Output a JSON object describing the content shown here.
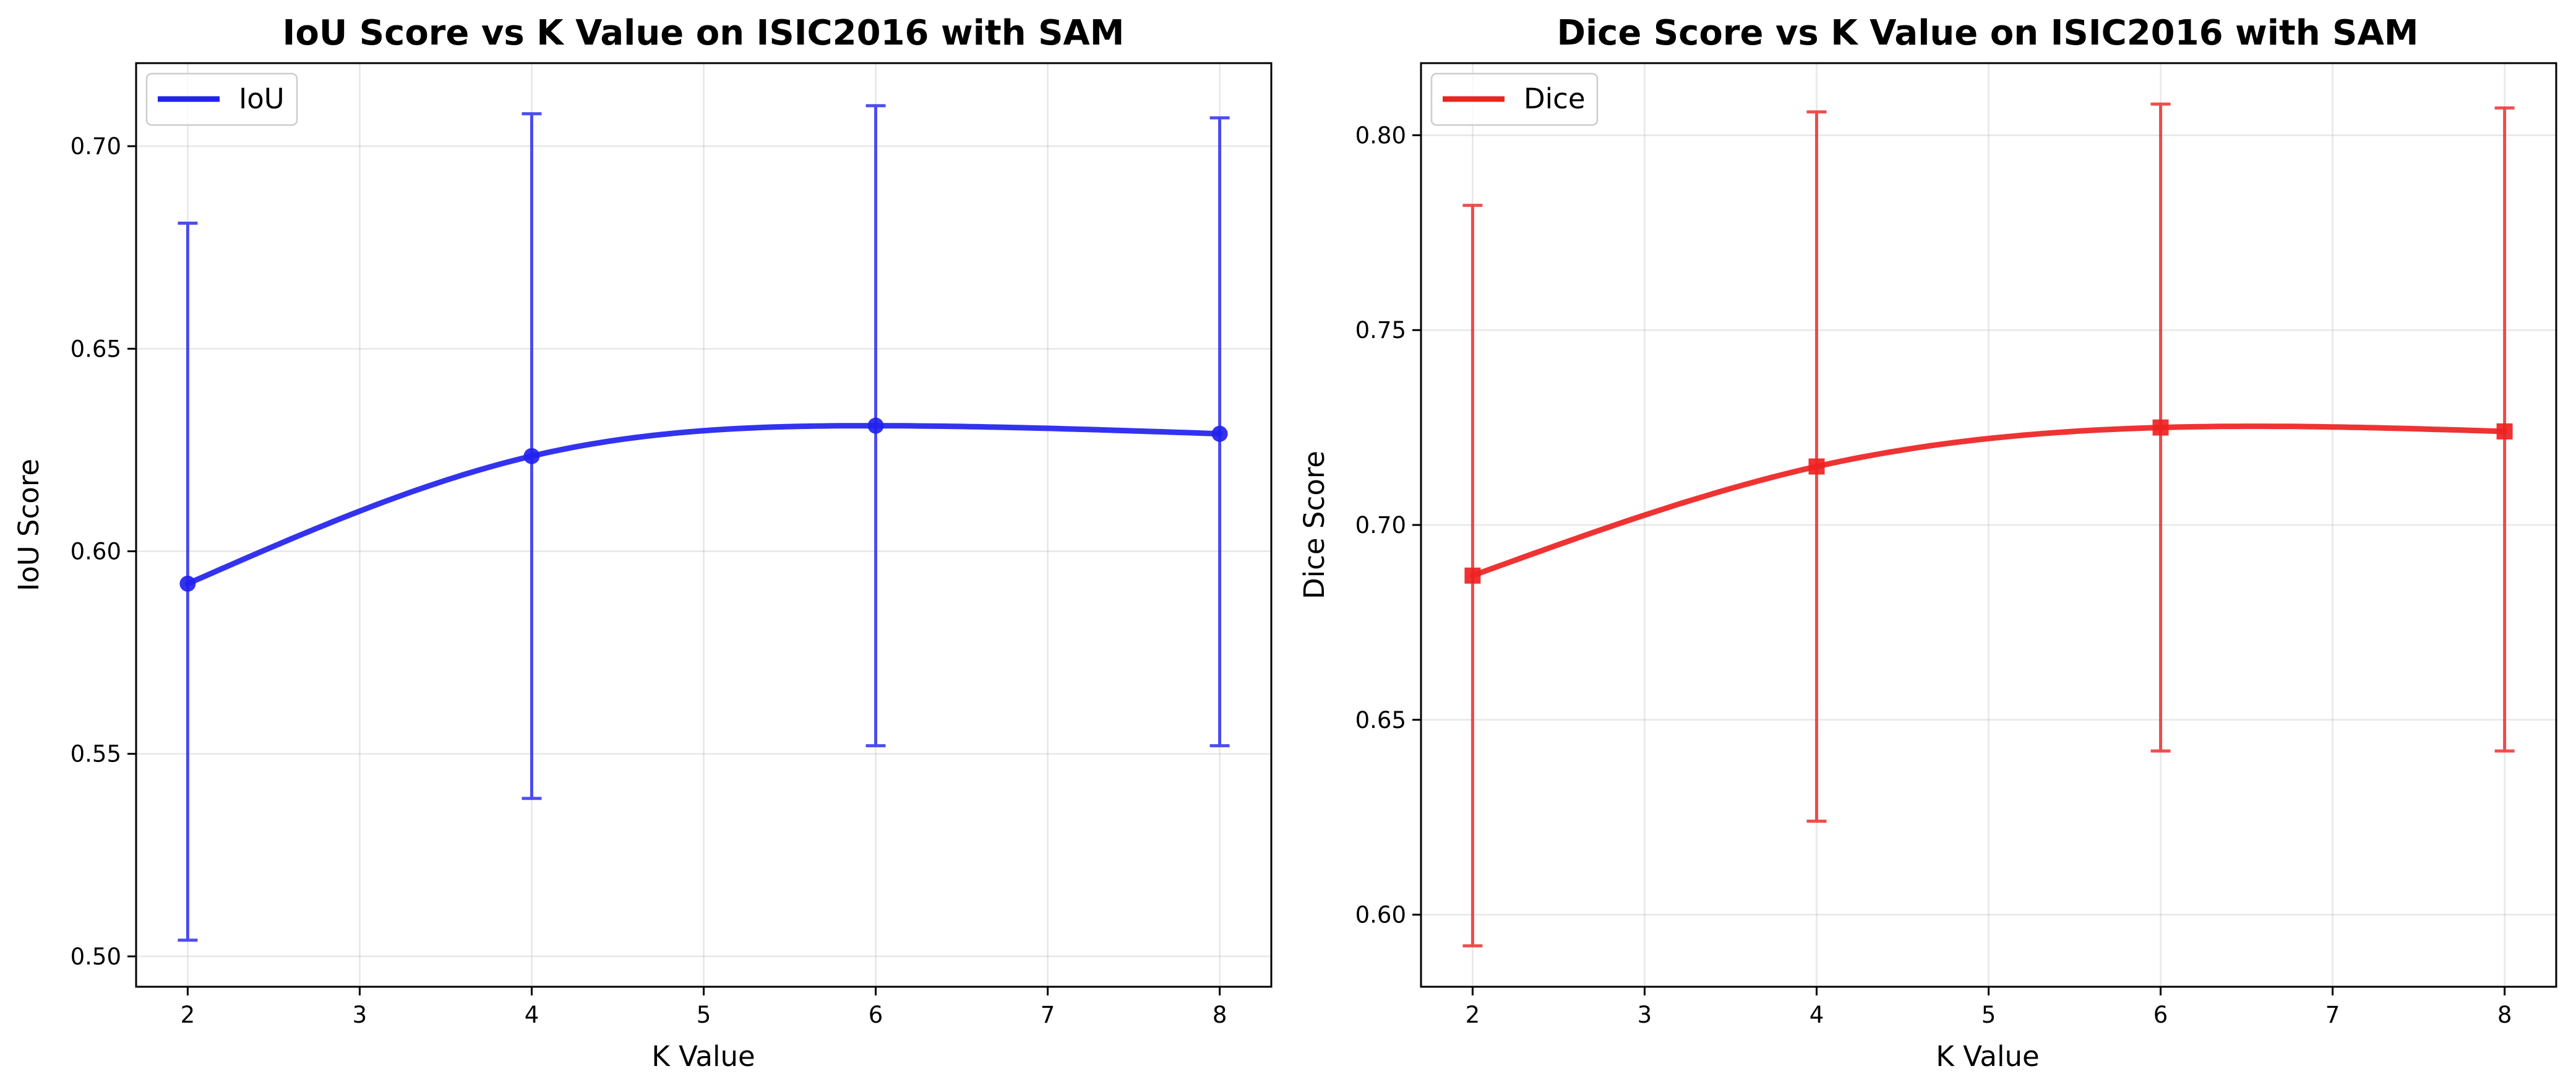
{
  "chart_data": [
    {
      "type": "line",
      "title": "IoU Score vs K Value on ISIC2016 with SAM",
      "xlabel": "K Value",
      "ylabel": "IoU Score",
      "xlim": [
        1.7,
        8.3
      ],
      "ylim": [
        0.4925,
        0.7205
      ],
      "xticks": [
        2,
        3,
        4,
        5,
        6,
        7,
        8
      ],
      "yticks": [
        0.5,
        0.55,
        0.6,
        0.65,
        0.7
      ],
      "grid": true,
      "legend_position": "top-left",
      "color": "#2222ee",
      "marker": "circle",
      "series": [
        {
          "name": "IoU",
          "x": [
            2,
            4,
            6,
            8
          ],
          "y": [
            0.592,
            0.6235,
            0.631,
            0.629
          ],
          "err_low": [
            0.504,
            0.539,
            0.552,
            0.552
          ],
          "err_high": [
            0.681,
            0.708,
            0.71,
            0.707
          ]
        }
      ]
    },
    {
      "type": "line",
      "title": "Dice Score vs K Value on ISIC2016 with SAM",
      "xlabel": "K Value",
      "ylabel": "Dice Score",
      "xlim": [
        1.7,
        8.3
      ],
      "ylim": [
        0.5815,
        0.8185
      ],
      "xticks": [
        2,
        3,
        4,
        5,
        6,
        7,
        8
      ],
      "yticks": [
        0.6,
        0.65,
        0.7,
        0.75,
        0.8
      ],
      "grid": true,
      "legend_position": "top-left",
      "color": "#ee2222",
      "marker": "square",
      "series": [
        {
          "name": "Dice",
          "x": [
            2,
            4,
            6,
            8
          ],
          "y": [
            0.687,
            0.715,
            0.725,
            0.724
          ],
          "err_low": [
            0.592,
            0.624,
            0.642,
            0.642
          ],
          "err_high": [
            0.782,
            0.806,
            0.808,
            0.807
          ]
        }
      ]
    }
  ]
}
